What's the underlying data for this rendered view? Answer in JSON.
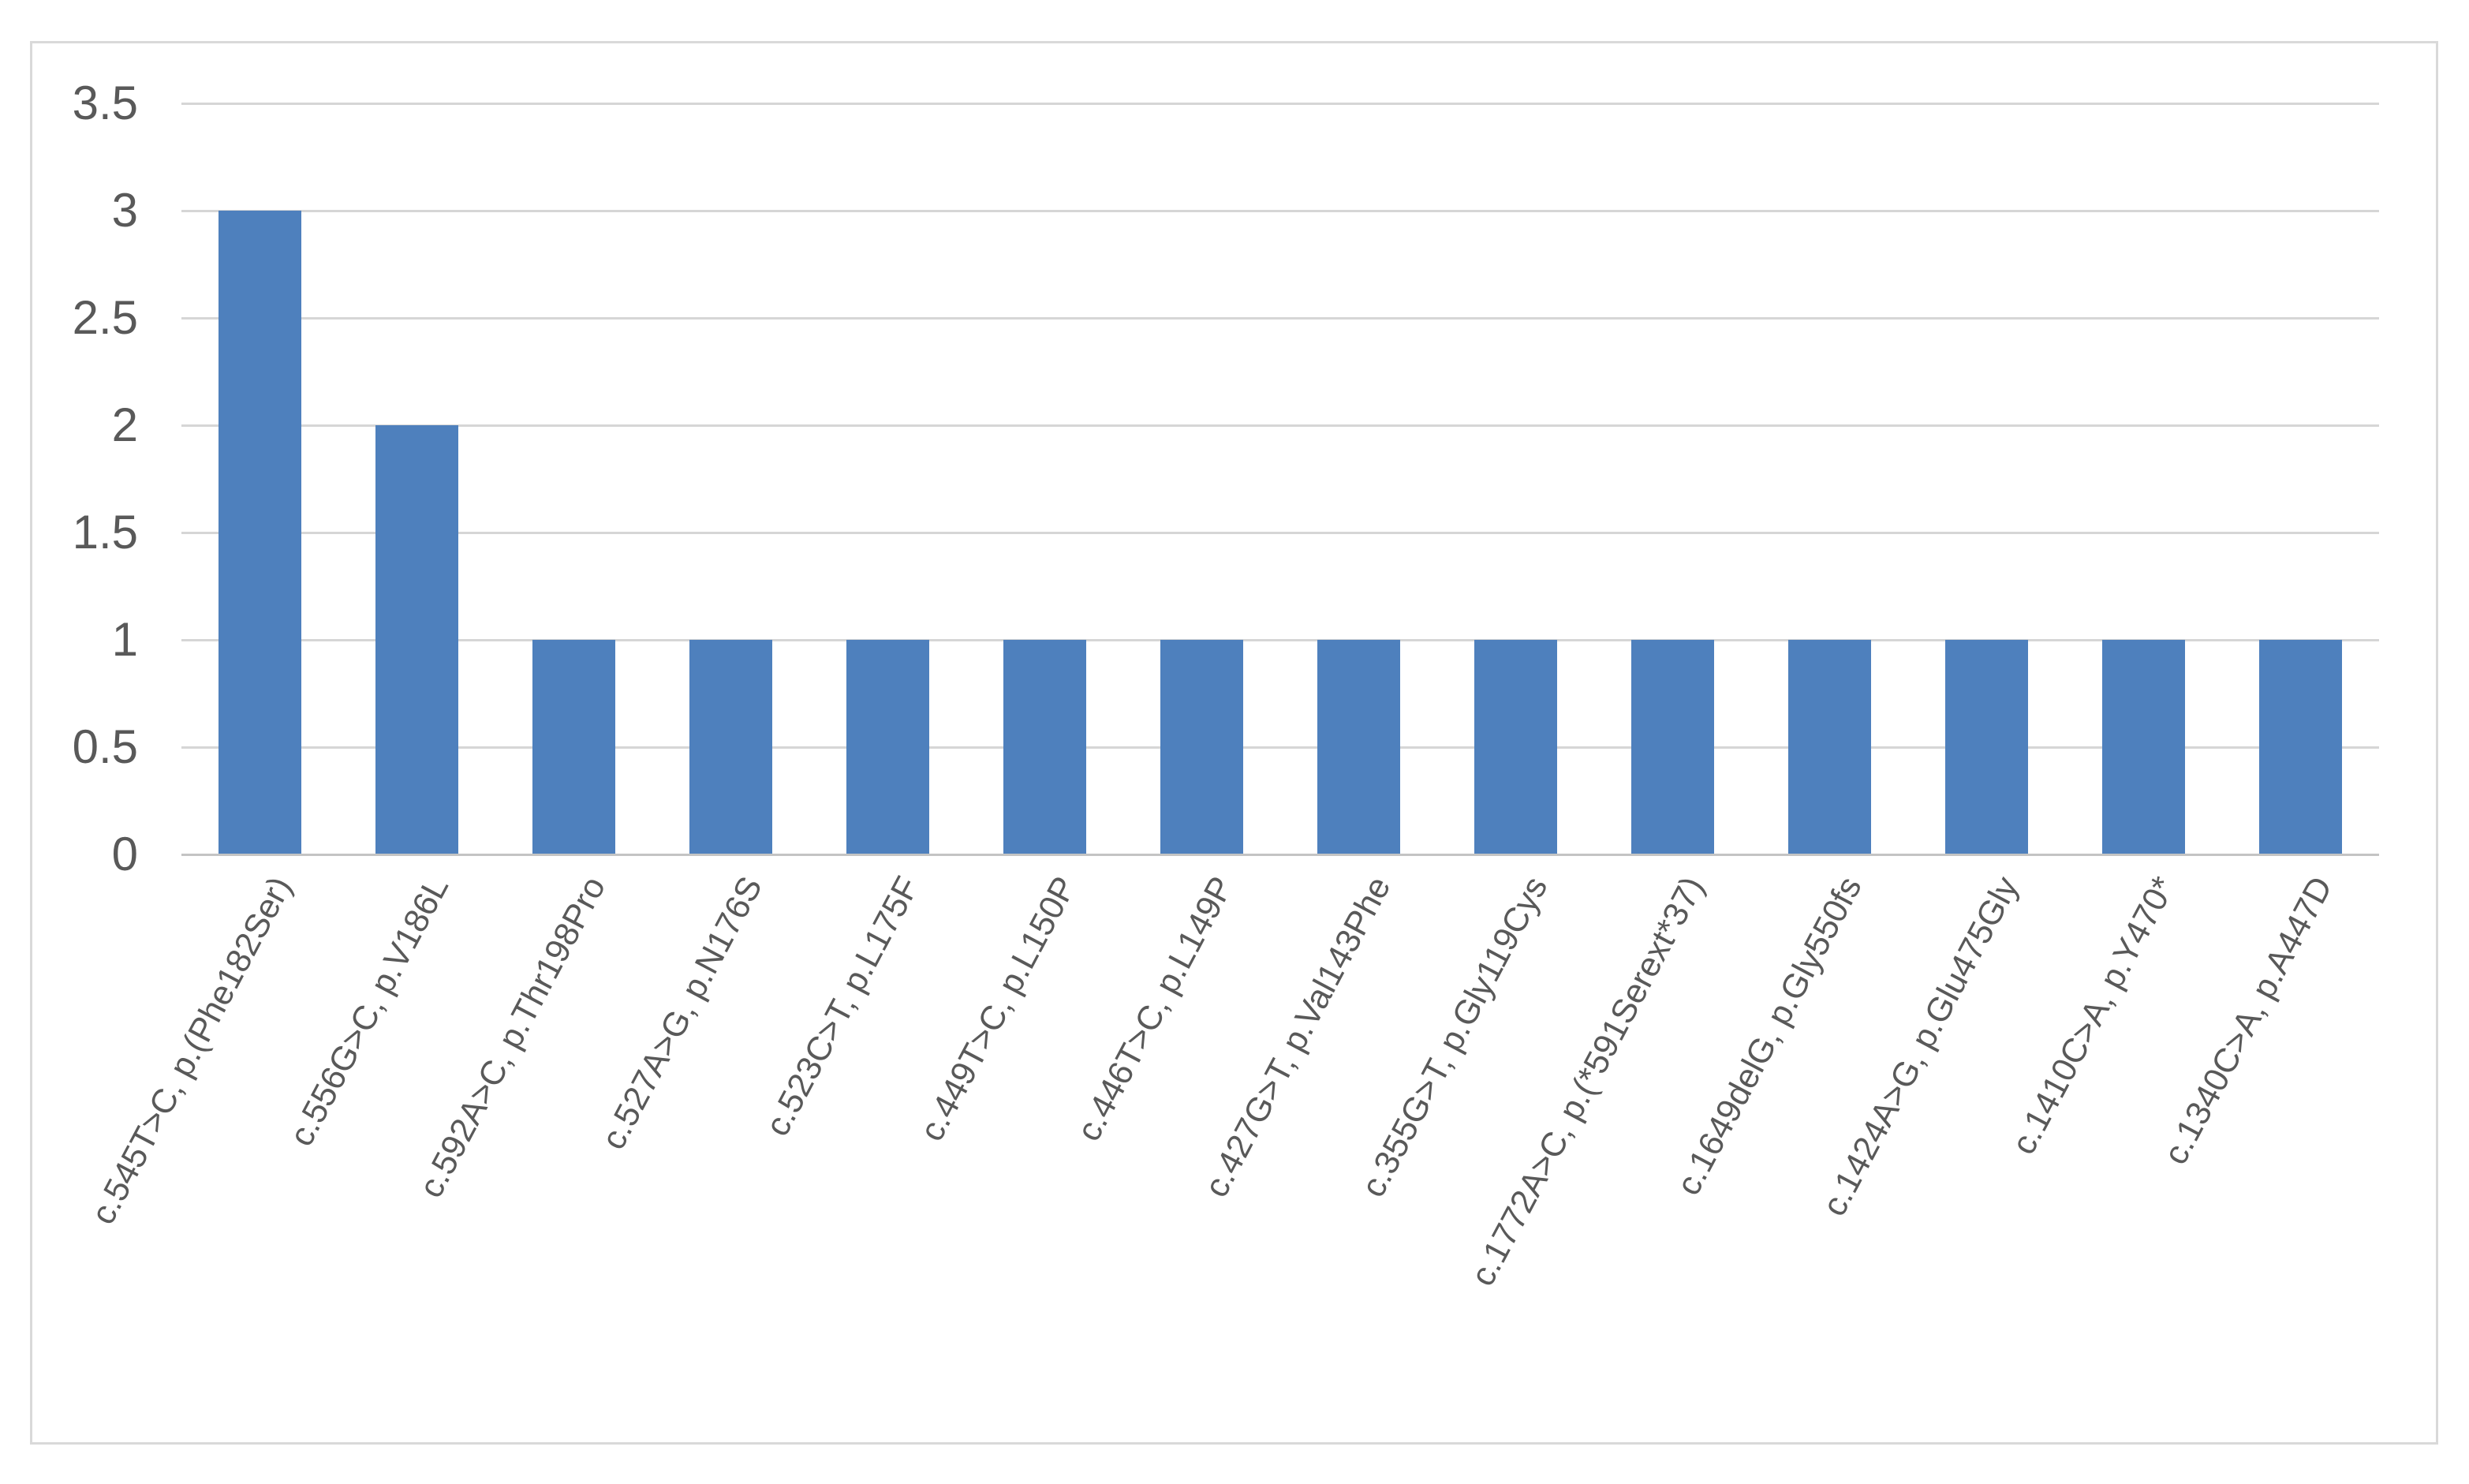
{
  "chart_data": {
    "type": "bar",
    "title": "",
    "xlabel": "",
    "ylabel": "",
    "categories": [
      "c.545T>C, p.(Phe182Ser)",
      "c.556G>C, p.V186L",
      "c.592A>C, p.Thr198Pro",
      "c.527A>G, p.N176S",
      "c.523C>T, p.L175F",
      "c.449T>C, p.L150P",
      "c.446T>C, p.L149P",
      "c.427G>T, p.Val143Phe",
      "c.355G>T, p.Gly119Cys",
      "c.1772A>C, p.(*591Serext*37)",
      "c.1649delG, p.Gly550fs",
      "c.1424A>G, p.Glu475Gly",
      "c.1410C>A, p.Y470*",
      "c.1340C>A, p.A447D"
    ],
    "values": [
      3,
      2,
      1,
      1,
      1,
      1,
      1,
      1,
      1,
      1,
      1,
      1,
      1,
      1
    ],
    "ylim": [
      0,
      3.5
    ],
    "yticks": [
      0,
      0.5,
      1,
      1.5,
      2,
      2.5,
      3,
      3.5
    ],
    "ytick_labels": [
      "0",
      "0.5",
      "1",
      "1.5",
      "2",
      "2.5",
      "3",
      "3.5"
    ],
    "grid": true,
    "legend": "none",
    "x_label_rotation_deg": 62,
    "colors": {
      "bar": "#4E80BD",
      "gridline": "#D6D6D6",
      "axis_line": "#C4C4C4",
      "tick_label": "#595959",
      "frame_border": "#D9D9D9",
      "background": "#FFFFFF"
    }
  }
}
